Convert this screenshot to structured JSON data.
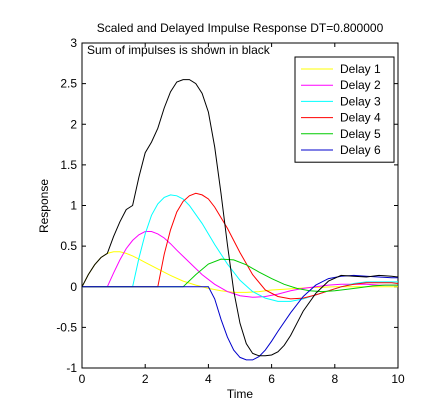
{
  "chart_data": {
    "type": "line",
    "title": "Scaled and Delayed Impulse Response DT=0.800000",
    "xlabel": "Time",
    "ylabel": "Response",
    "annotation": "Sum of impulses is shown in black",
    "xlim": [
      0,
      10
    ],
    "ylim": [
      -1,
      3
    ],
    "xticks": [
      0,
      2,
      4,
      6,
      8,
      10
    ],
    "yticks": [
      -1,
      -0.5,
      0,
      0.5,
      1,
      1.5,
      2,
      2.5,
      3
    ],
    "xtick_labels": [
      "0",
      "2",
      "4",
      "6",
      "8",
      "10"
    ],
    "ytick_labels": [
      "-1",
      "-0.5",
      "0",
      "0.5",
      "1",
      "1.5",
      "2",
      "2.5",
      "3"
    ],
    "grid": false,
    "legend_position": "top-right",
    "series": [
      {
        "name": "Delay 1",
        "color": "#ffff00",
        "x": [
          0,
          0.2,
          0.4,
          0.6,
          0.8,
          1.0,
          1.2,
          1.4,
          1.6,
          1.8,
          2.0,
          2.4,
          2.8,
          3.2,
          3.6,
          4.0,
          4.4,
          4.8,
          5.2,
          5.6,
          6.0,
          6.4,
          6.8,
          7.2,
          7.6,
          8.0,
          8.4,
          8.8,
          9.2,
          9.6,
          10.0
        ],
        "y": [
          0,
          0.15,
          0.27,
          0.36,
          0.41,
          0.43,
          0.43,
          0.41,
          0.38,
          0.34,
          0.3,
          0.22,
          0.14,
          0.07,
          0.02,
          -0.02,
          -0.05,
          -0.07,
          -0.07,
          -0.06,
          -0.04,
          -0.03,
          -0.02,
          -0.01,
          -0.005,
          0.0,
          0.0,
          0.0,
          0.0,
          0.0,
          0.0
        ]
      },
      {
        "name": "Delay 2",
        "color": "#ff00ff",
        "x": [
          0,
          0.8,
          1.0,
          1.2,
          1.4,
          1.6,
          1.8,
          2.0,
          2.2,
          2.4,
          2.6,
          2.8,
          3.0,
          3.4,
          3.8,
          4.2,
          4.6,
          5.0,
          5.4,
          5.8,
          6.2,
          6.6,
          7.0,
          7.4,
          7.8,
          8.2,
          8.6,
          9.0,
          9.4,
          9.8,
          10.0
        ],
        "y": [
          0,
          0,
          0.17,
          0.33,
          0.47,
          0.57,
          0.64,
          0.68,
          0.68,
          0.65,
          0.6,
          0.53,
          0.45,
          0.3,
          0.15,
          0.03,
          -0.06,
          -0.11,
          -0.13,
          -0.12,
          -0.09,
          -0.05,
          -0.02,
          0.0,
          0.02,
          0.03,
          0.03,
          0.03,
          0.02,
          0.02,
          0.02
        ]
      },
      {
        "name": "Delay 3",
        "color": "#00ffff",
        "x": [
          0,
          1.6,
          1.8,
          2.0,
          2.2,
          2.4,
          2.6,
          2.8,
          3.0,
          3.2,
          3.4,
          3.8,
          4.2,
          4.6,
          5.0,
          5.4,
          5.8,
          6.2,
          6.6,
          7.0,
          7.4,
          7.8,
          8.2,
          8.6,
          9.0,
          9.4,
          9.8,
          10.0
        ],
        "y": [
          0,
          0,
          0.35,
          0.65,
          0.88,
          1.02,
          1.1,
          1.13,
          1.12,
          1.08,
          1.0,
          0.78,
          0.52,
          0.28,
          0.08,
          -0.06,
          -0.14,
          -0.18,
          -0.18,
          -0.15,
          -0.1,
          -0.05,
          0.0,
          0.04,
          0.06,
          0.06,
          0.06,
          0.06
        ]
      },
      {
        "name": "Delay 4",
        "color": "#ff0000",
        "x": [
          0,
          2.4,
          2.6,
          2.8,
          3.0,
          3.2,
          3.4,
          3.6,
          3.8,
          4.0,
          4.2,
          4.6,
          5.0,
          5.4,
          5.8,
          6.2,
          6.6,
          7.0,
          7.4,
          7.8,
          8.2,
          8.6,
          9.0,
          9.4,
          9.8,
          10.0
        ],
        "y": [
          0,
          0,
          0.4,
          0.7,
          0.92,
          1.05,
          1.12,
          1.15,
          1.13,
          1.08,
          0.98,
          0.72,
          0.42,
          0.15,
          -0.04,
          -0.12,
          -0.15,
          -0.14,
          -0.1,
          -0.05,
          0.0,
          0.03,
          0.05,
          0.05,
          0.05,
          0.04
        ]
      },
      {
        "name": "Delay 5",
        "color": "#00cc00",
        "x": [
          0,
          3.2,
          3.6,
          4.0,
          4.4,
          4.8,
          5.2,
          5.6,
          6.0,
          6.4,
          6.8,
          7.2,
          7.6,
          8.0,
          8.4,
          8.8,
          9.2,
          9.6,
          10.0
        ],
        "y": [
          0,
          0,
          0.15,
          0.28,
          0.34,
          0.33,
          0.27,
          0.18,
          0.1,
          0.03,
          -0.02,
          -0.05,
          -0.06,
          -0.05,
          -0.03,
          -0.01,
          0.01,
          0.02,
          0.02
        ]
      },
      {
        "name": "Delay 6",
        "color": "#0000cc",
        "x": [
          0,
          4.0,
          4.2,
          4.4,
          4.6,
          4.8,
          5.0,
          5.2,
          5.4,
          5.6,
          5.8,
          6.0,
          6.2,
          6.6,
          7.0,
          7.4,
          7.8,
          8.2,
          8.6,
          9.0,
          9.4,
          9.8,
          10.0
        ],
        "y": [
          0,
          0,
          -0.15,
          -0.4,
          -0.62,
          -0.78,
          -0.87,
          -0.9,
          -0.9,
          -0.86,
          -0.78,
          -0.67,
          -0.55,
          -0.32,
          -0.12,
          0.02,
          0.1,
          0.13,
          0.14,
          0.13,
          0.12,
          0.11,
          0.11
        ]
      },
      {
        "name": "Sum",
        "color": "#000000",
        "x": [
          0,
          0.2,
          0.4,
          0.6,
          0.8,
          1.0,
          1.2,
          1.4,
          1.6,
          1.8,
          2.0,
          2.2,
          2.4,
          2.6,
          2.8,
          3.0,
          3.2,
          3.4,
          3.6,
          3.8,
          4.0,
          4.2,
          4.4,
          4.6,
          4.8,
          5.0,
          5.2,
          5.4,
          5.6,
          5.8,
          6.0,
          6.2,
          6.4,
          6.6,
          6.8,
          7.0,
          7.4,
          7.8,
          8.2,
          8.6,
          9.0,
          9.4,
          9.8,
          10.0
        ],
        "y": [
          0,
          0.15,
          0.27,
          0.36,
          0.41,
          0.62,
          0.8,
          0.95,
          1.0,
          1.35,
          1.65,
          1.78,
          1.95,
          2.2,
          2.4,
          2.52,
          2.55,
          2.55,
          2.5,
          2.38,
          2.15,
          1.72,
          1.15,
          0.52,
          -0.05,
          -0.45,
          -0.7,
          -0.82,
          -0.85,
          -0.85,
          -0.84,
          -0.8,
          -0.72,
          -0.6,
          -0.45,
          -0.3,
          -0.08,
          0.07,
          0.14,
          0.13,
          0.12,
          0.14,
          0.13,
          0.12
        ]
      }
    ]
  }
}
